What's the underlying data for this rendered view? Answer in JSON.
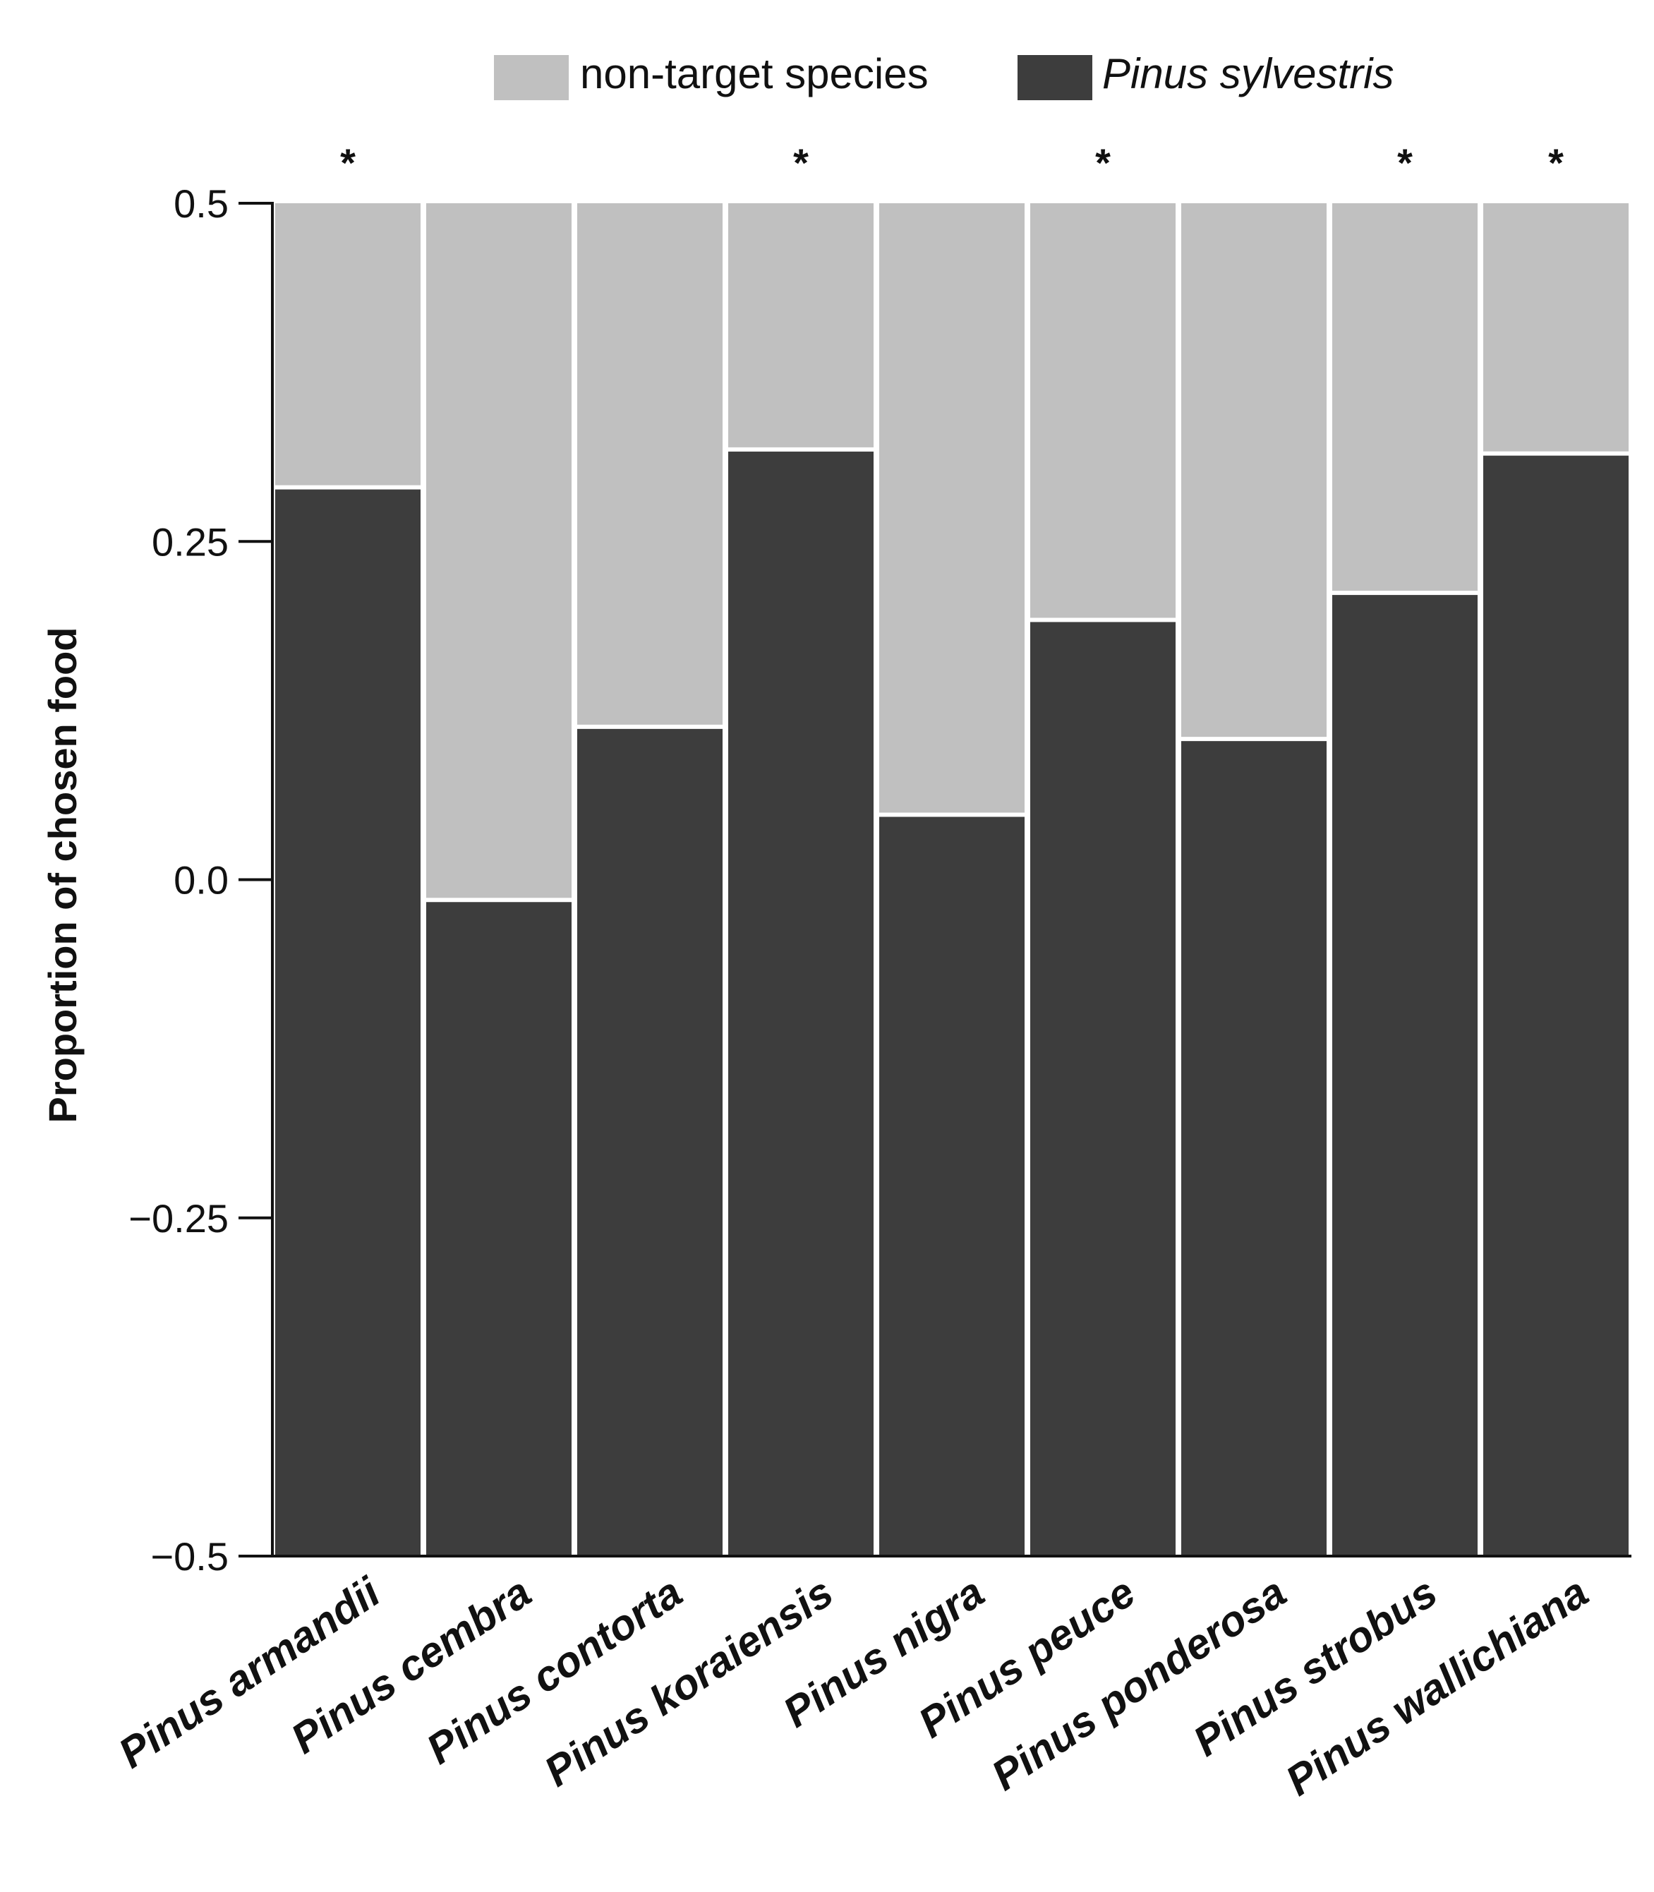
{
  "chart_data": {
    "type": "bar",
    "stacked": true,
    "title": "",
    "xlabel": "",
    "ylabel": "Proportion of chosen food",
    "ylim": [
      -0.5,
      0.5
    ],
    "yticks": [
      0.5,
      0.25,
      0.0,
      -0.25,
      -0.5
    ],
    "ytick_labels": [
      "0.5",
      "0.25",
      "0.0",
      "−0.25",
      "−0.5"
    ],
    "categories": [
      "Pinus armandii",
      "Pinus cembra",
      "Pinus contorta",
      "Pinus koraiensis",
      "Pinus nigra",
      "Pinus peuce",
      "Pinus ponderosa",
      "Pinus strobus",
      "Pinus wallichiana"
    ],
    "boundary_values": [
      0.29,
      -0.015,
      0.113,
      0.318,
      0.048,
      0.192,
      0.104,
      0.212,
      0.315
    ],
    "series": [
      {
        "name": "Pinus sylvestris",
        "color": "#3d3d3d",
        "range": "from -0.5 to boundary value"
      },
      {
        "name": "non-target species",
        "color": "#c0c0c0",
        "range": "from boundary value to 0.5"
      }
    ],
    "significance": [
      "*",
      "",
      "",
      "*",
      "",
      "*",
      "",
      "*",
      "*"
    ],
    "legend": {
      "position": "top-center",
      "entries": [
        {
          "label": "non-target species",
          "color": "#c0c0c0",
          "italic": false
        },
        {
          "label": "Pinus sylvestris",
          "color": "#3d3d3d",
          "italic": true
        }
      ]
    },
    "grid": false
  }
}
